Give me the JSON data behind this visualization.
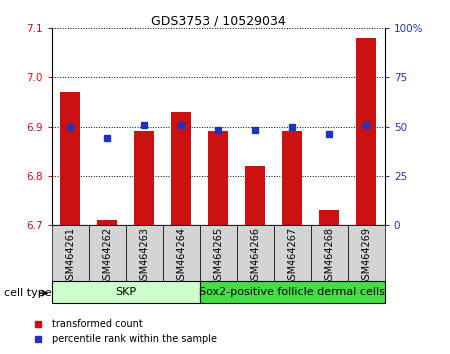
{
  "title": "GDS3753 / 10529034",
  "samples": [
    "GSM464261",
    "GSM464262",
    "GSM464263",
    "GSM464264",
    "GSM464265",
    "GSM464266",
    "GSM464267",
    "GSM464268",
    "GSM464269"
  ],
  "transformed_count": [
    6.97,
    6.71,
    6.89,
    6.93,
    6.89,
    6.82,
    6.89,
    6.73,
    7.08
  ],
  "percentile_rank": [
    50,
    44,
    51,
    51,
    48,
    48,
    50,
    46,
    51
  ],
  "ylim_left": [
    6.7,
    7.1
  ],
  "ylim_right": [
    0,
    100
  ],
  "yticks_left": [
    6.7,
    6.8,
    6.9,
    7.0,
    7.1
  ],
  "yticks_right": [
    0,
    25,
    50,
    75,
    100
  ],
  "ytick_labels_right": [
    "0",
    "25",
    "50",
    "75",
    "100%"
  ],
  "bar_color": "#cc1111",
  "dot_color": "#2233bb",
  "cell_type_groups": [
    {
      "label": "SKP",
      "start": 0,
      "end": 4,
      "color": "#ccffcc"
    },
    {
      "label": "Sox2-positive follicle dermal cells",
      "start": 4,
      "end": 9,
      "color": "#44dd44"
    }
  ],
  "cell_type_label": "cell type",
  "legend_bar_label": "transformed count",
  "legend_dot_label": "percentile rank within the sample",
  "bar_width": 0.55,
  "figsize": [
    4.5,
    3.54
  ],
  "dpi": 100,
  "bg_gray": "#d4d4d4",
  "title_fontsize": 9,
  "axis_fontsize": 7.5,
  "label_fontsize": 7,
  "cell_type_fontsize": 8
}
